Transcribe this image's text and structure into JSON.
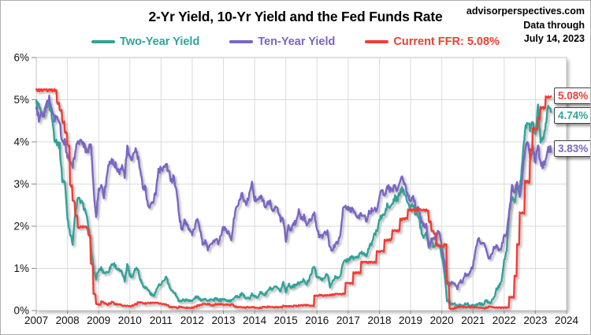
{
  "header": {
    "title": "2-Yr Yield, 10-Yr Yield and the Fed Funds Rate",
    "source": "advisorperspectives.com",
    "data_through_line1": "Data through",
    "data_through_line2": "July 14, 2023"
  },
  "legend": [
    {
      "label": "Two-Year Yield",
      "color": "#2FA39B"
    },
    {
      "label": "Ten-Year Yield",
      "color": "#7A65C4"
    },
    {
      "label": "Current FFR: 5.08%",
      "color": "#EE3E35"
    }
  ],
  "end_labels": [
    {
      "text": "5.08%",
      "value": 5.08,
      "color": "#EE3E35"
    },
    {
      "text": "4.74%",
      "value": 4.74,
      "color": "#2FA39B"
    },
    {
      "text": "3.83%",
      "value": 3.83,
      "color": "#7A65C4"
    }
  ],
  "colors": {
    "grid": "#DADADA",
    "frame": "#C2C2C2",
    "tick": "#8A8A8A",
    "axis_text": "#111111"
  },
  "chart_data": {
    "type": "line",
    "title": "2-Yr Yield, 10-Yr Yield and the Fed Funds Rate",
    "xlabel": "",
    "ylabel": "",
    "xlim": [
      2007,
      2024
    ],
    "ylim": [
      0,
      6
    ],
    "grid": true,
    "legend_position": "top",
    "x_ticks": [
      2007,
      2008,
      2009,
      2010,
      2011,
      2012,
      2013,
      2014,
      2015,
      2016,
      2017,
      2018,
      2019,
      2020,
      2021,
      2022,
      2023,
      2024
    ],
    "y_ticks": [
      0,
      1,
      2,
      3,
      4,
      5,
      6
    ],
    "y_tick_suffix": "%",
    "x_start_year": 2007,
    "x_step_months": 1,
    "series": [
      {
        "name": "Two-Year Yield",
        "color": "#2FA39B",
        "step": false,
        "end_value": 4.74,
        "values": [
          4.93,
          4.85,
          4.6,
          4.65,
          4.9,
          4.9,
          4.6,
          4.1,
          4.0,
          3.9,
          3.1,
          3.05,
          2.2,
          1.85,
          1.6,
          2.3,
          2.65,
          2.6,
          2.5,
          2.35,
          2.0,
          1.55,
          1.0,
          0.75,
          0.95,
          1.0,
          0.9,
          0.9,
          0.95,
          1.1,
          1.1,
          1.0,
          0.95,
          0.9,
          0.7,
          1.1,
          0.85,
          0.8,
          1.0,
          1.0,
          0.75,
          0.6,
          0.55,
          0.5,
          0.4,
          0.35,
          0.45,
          0.6,
          0.6,
          0.7,
          0.8,
          0.6,
          0.45,
          0.45,
          0.35,
          0.2,
          0.25,
          0.25,
          0.25,
          0.25,
          0.22,
          0.3,
          0.33,
          0.26,
          0.26,
          0.3,
          0.22,
          0.27,
          0.23,
          0.28,
          0.25,
          0.25,
          0.27,
          0.24,
          0.24,
          0.22,
          0.3,
          0.36,
          0.31,
          0.4,
          0.33,
          0.31,
          0.28,
          0.38,
          0.33,
          0.32,
          0.42,
          0.41,
          0.37,
          0.46,
          0.53,
          0.49,
          0.57,
          0.5,
          0.47,
          0.67,
          0.45,
          0.62,
          0.56,
          0.58,
          0.61,
          0.65,
          0.66,
          0.74,
          0.63,
          0.73,
          0.93,
          1.05,
          0.78,
          0.78,
          0.72,
          0.78,
          0.88,
          0.58,
          0.66,
          0.81,
          0.76,
          0.84,
          1.11,
          1.19,
          1.2,
          1.26,
          1.25,
          1.26,
          1.28,
          1.38,
          1.35,
          1.33,
          1.48,
          1.6,
          1.78,
          1.88,
          2.14,
          2.25,
          2.27,
          2.49,
          2.43,
          2.53,
          2.67,
          2.63,
          2.82,
          2.87,
          2.79,
          2.49,
          2.46,
          2.51,
          2.27,
          2.27,
          1.92,
          1.76,
          1.87,
          1.5,
          1.62,
          1.52,
          1.61,
          1.57,
          1.31,
          0.91,
          0.25,
          0.2,
          0.16,
          0.15,
          0.11,
          0.13,
          0.13,
          0.15,
          0.15,
          0.12,
          0.11,
          0.13,
          0.16,
          0.16,
          0.14,
          0.25,
          0.18,
          0.21,
          0.28,
          0.5,
          0.57,
          0.73,
          1.18,
          1.43,
          2.33,
          2.7,
          2.56,
          2.95,
          2.88,
          3.49,
          4.28,
          4.49,
          4.31,
          4.43,
          4.2,
          4.81,
          4.03,
          4.01,
          4.4,
          4.9,
          4.74
        ]
      },
      {
        "name": "Ten-Year Yield",
        "color": "#7A65C4",
        "step": false,
        "end_value": 3.83,
        "values": [
          4.83,
          4.56,
          4.65,
          4.63,
          4.9,
          5.03,
          4.78,
          4.54,
          4.58,
          4.47,
          3.97,
          4.02,
          3.64,
          3.53,
          3.41,
          3.73,
          4.06,
          3.98,
          3.99,
          3.83,
          3.83,
          3.96,
          2.92,
          2.21,
          2.84,
          3.02,
          2.67,
          3.12,
          3.46,
          3.53,
          3.48,
          3.4,
          3.31,
          3.39,
          3.2,
          3.84,
          3.59,
          3.61,
          3.83,
          3.66,
          3.3,
          2.94,
          2.91,
          2.47,
          2.51,
          2.6,
          2.8,
          3.3,
          3.37,
          3.41,
          3.45,
          3.29,
          3.06,
          3.16,
          2.8,
          2.22,
          1.92,
          2.11,
          2.07,
          1.88,
          1.8,
          1.97,
          2.21,
          1.91,
          1.56,
          1.64,
          1.47,
          1.55,
          1.63,
          1.69,
          1.61,
          1.76,
          1.98,
          1.88,
          1.85,
          1.67,
          2.13,
          2.49,
          2.58,
          2.78,
          2.61,
          2.55,
          2.74,
          3.03,
          2.64,
          2.65,
          2.72,
          2.65,
          2.46,
          2.53,
          2.56,
          2.34,
          2.49,
          2.34,
          2.16,
          2.17,
          1.64,
          1.99,
          1.92,
          2.03,
          2.12,
          2.35,
          2.18,
          2.22,
          2.04,
          2.14,
          2.21,
          2.27,
          1.92,
          1.74,
          1.77,
          1.83,
          1.85,
          1.47,
          1.45,
          1.58,
          1.59,
          1.83,
          2.38,
          2.44,
          2.45,
          2.39,
          2.39,
          2.28,
          2.2,
          2.3,
          2.29,
          2.12,
          2.33,
          2.38,
          2.41,
          2.41,
          2.71,
          2.86,
          2.74,
          2.95,
          2.86,
          2.86,
          2.96,
          2.86,
          3.06,
          3.14,
          2.99,
          2.68,
          2.63,
          2.72,
          2.41,
          2.5,
          2.14,
          2.01,
          2.01,
          1.5,
          1.66,
          1.69,
          1.78,
          1.92,
          1.51,
          1.15,
          0.67,
          0.64,
          0.65,
          0.66,
          0.53,
          0.71,
          0.68,
          0.87,
          0.84,
          0.92,
          1.07,
          1.41,
          1.74,
          1.63,
          1.59,
          1.47,
          1.22,
          1.31,
          1.49,
          1.55,
          1.44,
          1.51,
          1.78,
          1.83,
          2.34,
          2.93,
          2.85,
          3.01,
          2.65,
          3.19,
          3.83,
          4.05,
          3.61,
          3.87,
          3.51,
          3.92,
          3.47,
          3.42,
          3.64,
          3.84,
          3.83
        ]
      },
      {
        "name": "Current FFR",
        "color": "#EE3E35",
        "step": true,
        "end_value": 5.08,
        "values": [
          5.25,
          5.25,
          5.25,
          5.25,
          5.25,
          5.25,
          5.25,
          5.25,
          4.94,
          4.76,
          4.49,
          4.24,
          3.94,
          2.98,
          2.61,
          2.28,
          1.98,
          2.0,
          2.01,
          2.0,
          1.81,
          1.12,
          0.4,
          0.16,
          0.15,
          0.22,
          0.18,
          0.15,
          0.18,
          0.21,
          0.16,
          0.16,
          0.15,
          0.12,
          0.12,
          0.12,
          0.11,
          0.13,
          0.16,
          0.2,
          0.2,
          0.18,
          0.18,
          0.19,
          0.19,
          0.19,
          0.19,
          0.18,
          0.17,
          0.16,
          0.14,
          0.1,
          0.09,
          0.09,
          0.07,
          0.1,
          0.08,
          0.07,
          0.08,
          0.07,
          0.08,
          0.1,
          0.13,
          0.14,
          0.16,
          0.16,
          0.16,
          0.13,
          0.14,
          0.16,
          0.16,
          0.16,
          0.14,
          0.15,
          0.14,
          0.15,
          0.11,
          0.09,
          0.09,
          0.08,
          0.08,
          0.09,
          0.08,
          0.09,
          0.07,
          0.07,
          0.08,
          0.09,
          0.09,
          0.1,
          0.09,
          0.09,
          0.09,
          0.09,
          0.09,
          0.12,
          0.11,
          0.11,
          0.11,
          0.12,
          0.12,
          0.13,
          0.13,
          0.14,
          0.14,
          0.12,
          0.12,
          0.36,
          0.36,
          0.38,
          0.36,
          0.37,
          0.37,
          0.38,
          0.39,
          0.4,
          0.4,
          0.4,
          0.41,
          0.66,
          0.66,
          0.66,
          0.91,
          0.91,
          0.91,
          1.16,
          1.16,
          1.16,
          1.16,
          1.16,
          1.16,
          1.41,
          1.41,
          1.42,
          1.68,
          1.69,
          1.7,
          1.91,
          1.91,
          1.91,
          2.18,
          2.19,
          2.2,
          2.4,
          2.4,
          2.4,
          2.41,
          2.42,
          2.39,
          2.4,
          2.4,
          2.13,
          1.9,
          1.83,
          1.55,
          1.55,
          1.55,
          1.58,
          0.65,
          0.05,
          0.05,
          0.08,
          0.09,
          0.1,
          0.09,
          0.09,
          0.09,
          0.09,
          0.09,
          0.08,
          0.07,
          0.07,
          0.06,
          0.08,
          0.1,
          0.09,
          0.08,
          0.08,
          0.08,
          0.08,
          0.08,
          0.08,
          0.33,
          0.33,
          0.83,
          1.58,
          2.33,
          2.33,
          3.08,
          3.08,
          3.83,
          4.33,
          4.33,
          4.58,
          4.83,
          4.83,
          5.08,
          5.08,
          5.08
        ]
      }
    ]
  }
}
